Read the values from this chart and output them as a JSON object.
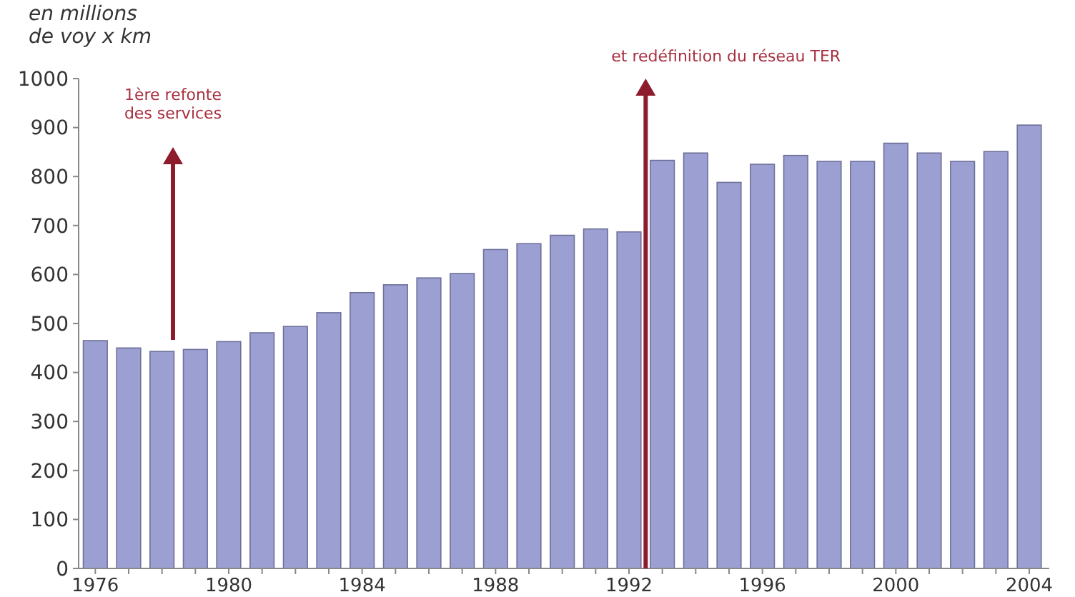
{
  "chart_data": {
    "type": "bar",
    "ylabel": "en millions\nde voy x km",
    "x": [
      1976,
      1977,
      1978,
      1979,
      1980,
      1981,
      1982,
      1983,
      1984,
      1985,
      1986,
      1987,
      1988,
      1989,
      1990,
      1991,
      1992,
      1993,
      1994,
      1995,
      1996,
      1997,
      1998,
      1999,
      2000,
      2001,
      2002,
      2003,
      2004
    ],
    "values": [
      465,
      450,
      443,
      447,
      463,
      481,
      494,
      522,
      563,
      579,
      593,
      602,
      651,
      663,
      680,
      693,
      687,
      833,
      848,
      788,
      825,
      843,
      831,
      831,
      868,
      848,
      831,
      851,
      905
    ],
    "color": "#9c9fd2",
    "xlim": [
      1975.5,
      2004.6
    ],
    "xticks": [
      1976,
      {
        "value": 1977,
        "label": null
      },
      {
        "value": 1978,
        "label": null
      },
      {
        "value": 1979,
        "label": null
      },
      1980,
      {
        "value": 1981,
        "label": null
      },
      {
        "value": 1982,
        "label": null
      },
      {
        "value": 1983,
        "label": null
      },
      1984,
      {
        "value": 1985,
        "label": null
      },
      {
        "value": 1986,
        "label": null
      },
      {
        "value": 1987,
        "label": null
      },
      1988,
      {
        "value": 1989,
        "label": null
      },
      {
        "value": 1990,
        "label": null
      },
      {
        "value": 1991,
        "label": null
      },
      1992,
      {
        "value": 1993,
        "label": null
      },
      {
        "value": 1994,
        "label": null
      },
      {
        "value": 1995,
        "label": null
      },
      1996,
      {
        "value": 1997,
        "label": null
      },
      {
        "value": 1998,
        "label": null
      },
      {
        "value": 1999,
        "label": null
      },
      2000,
      {
        "value": 2001,
        "label": null
      },
      {
        "value": 2002,
        "label": null
      },
      {
        "value": 2003,
        "label": null
      },
      2004
    ],
    "ylim": [
      0,
      1000
    ],
    "yticks": [
      0,
      100,
      200,
      300,
      400,
      500,
      600,
      700,
      800,
      900,
      1000
    ],
    "grid": false,
    "ref_lines": [
      {
        "axis": "x",
        "value": 1992.5,
        "label": "et redéfinition du réseau TER",
        "color": "#8e1b2b"
      }
    ],
    "annotations": [
      "1ère refonte\ndes services"
    ]
  }
}
